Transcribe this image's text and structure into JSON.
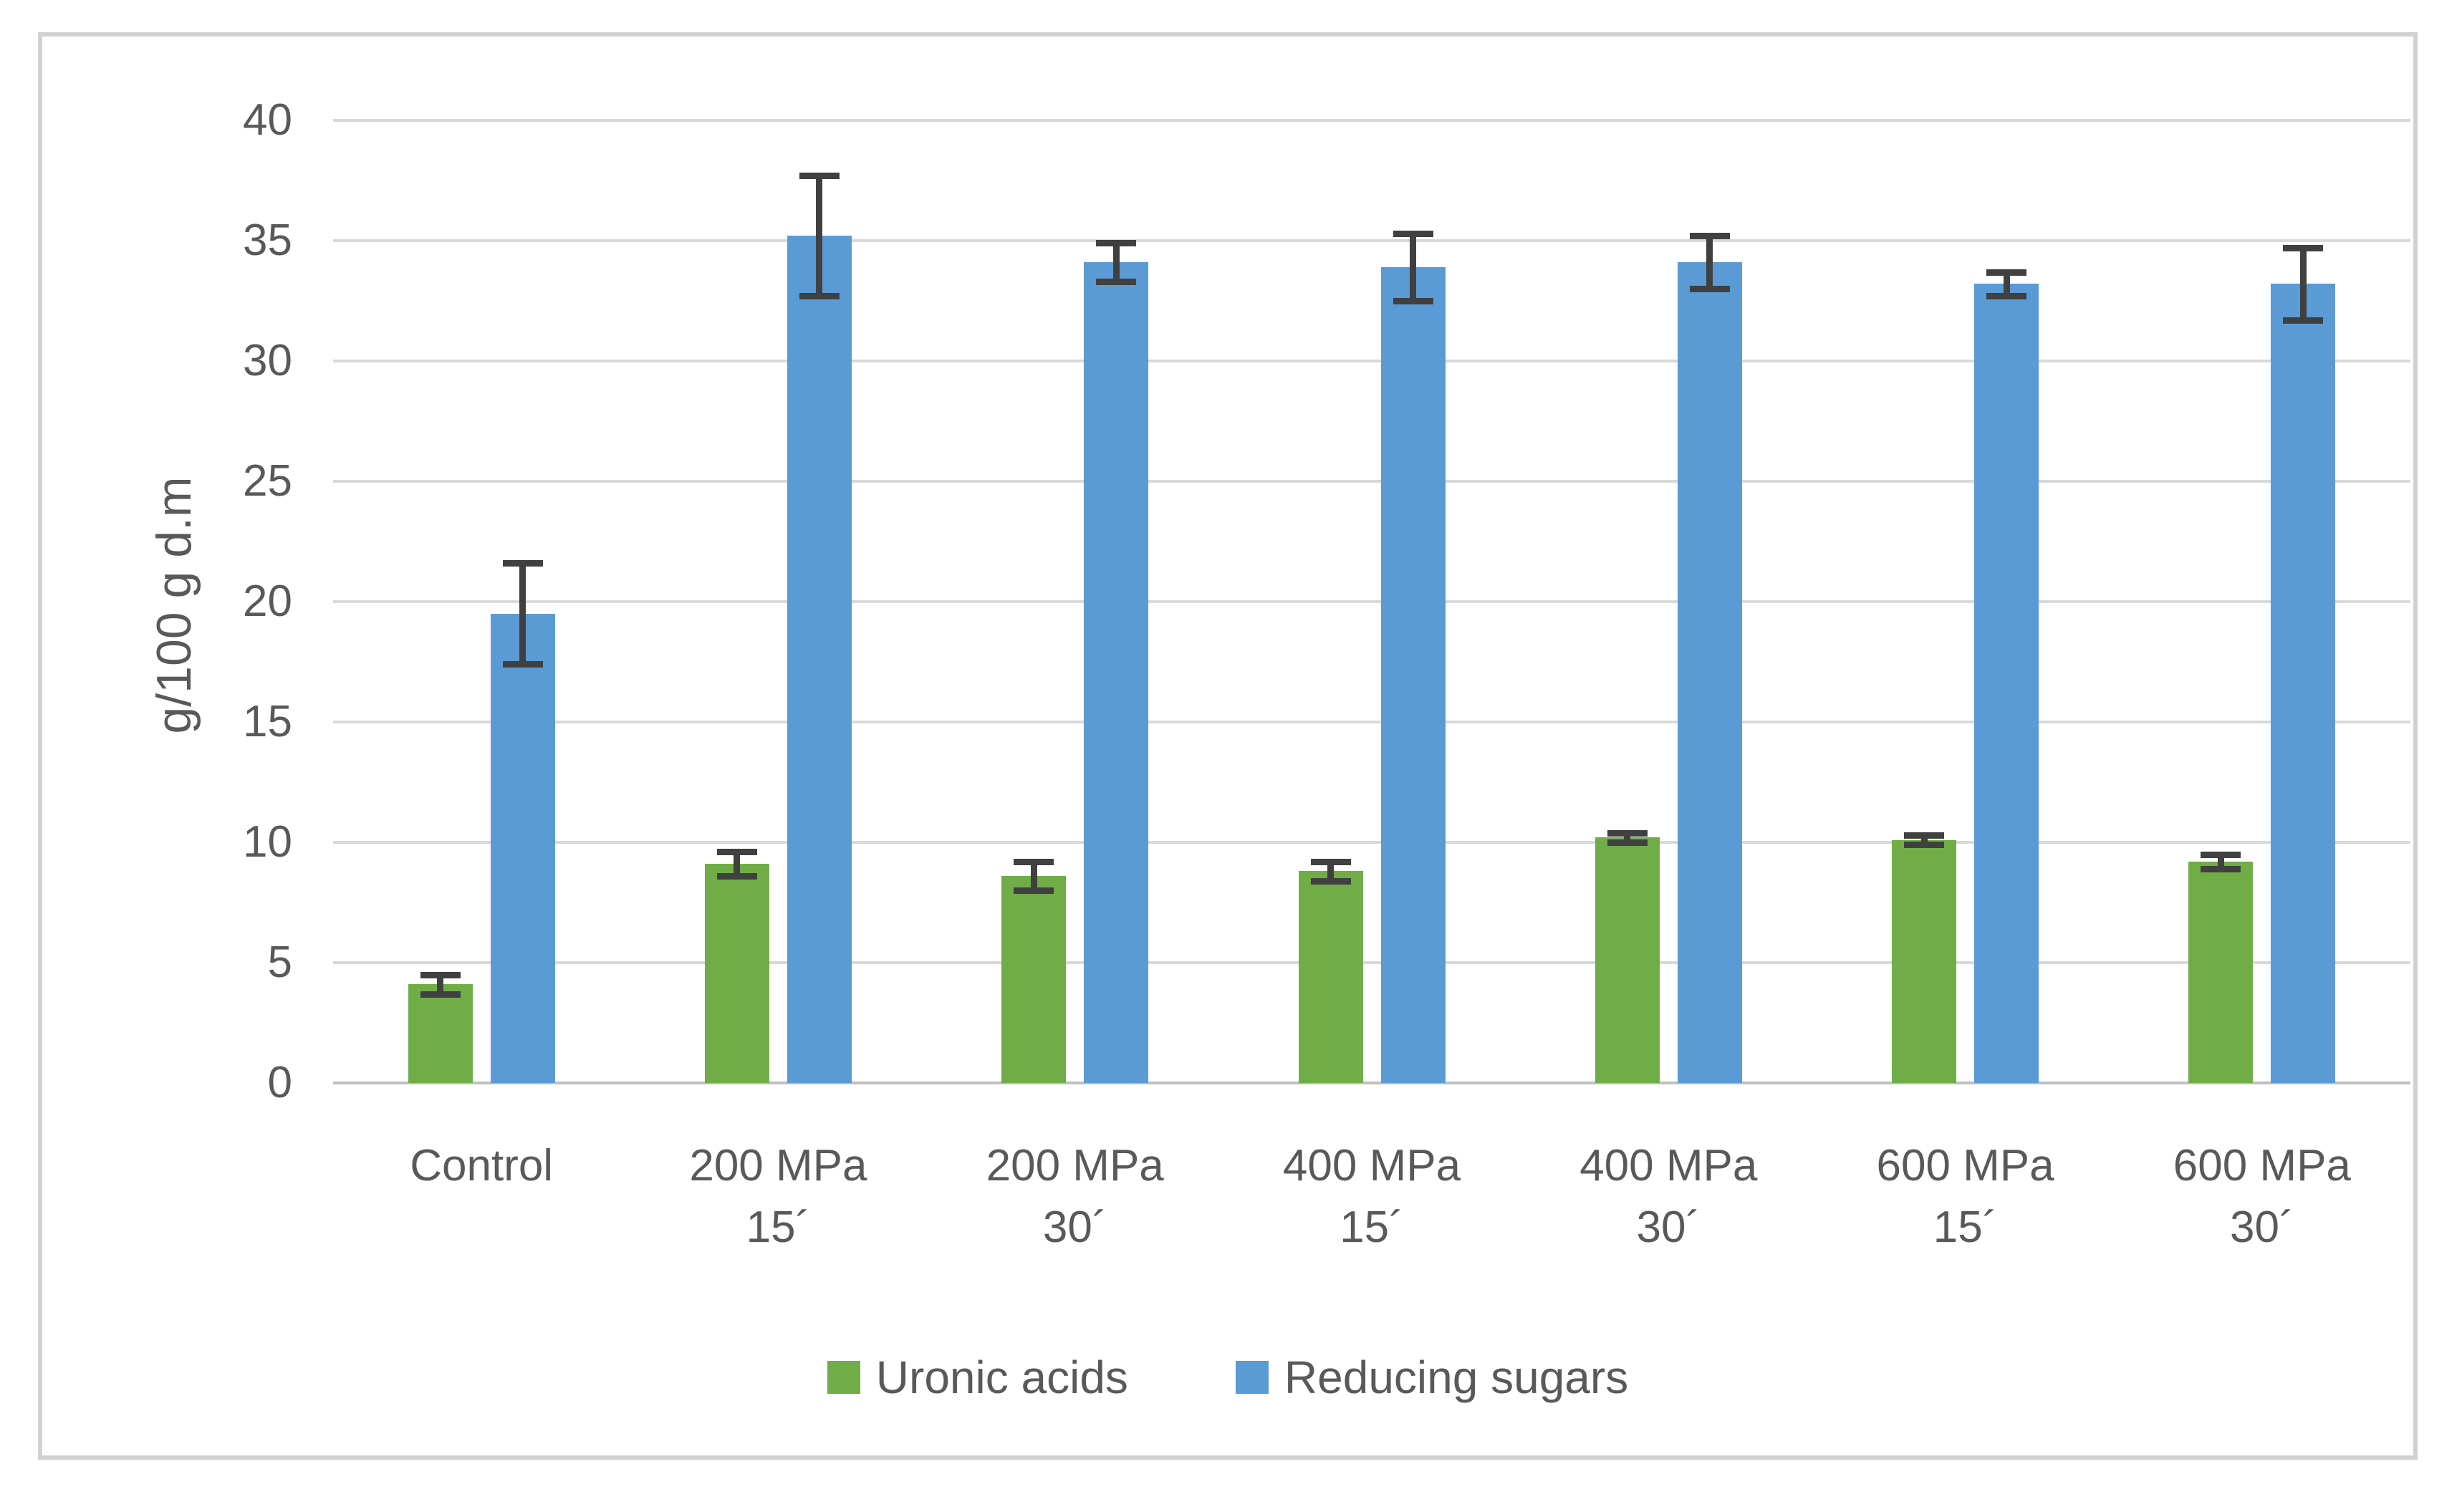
{
  "figure": {
    "ylabel": "g/100 g d.m"
  },
  "chart_data": {
    "type": "bar",
    "title": "",
    "xlabel": "",
    "ylabel": "g/100 g d.m",
    "ylim": [
      0,
      40
    ],
    "ytick_step": 5,
    "yticks": [
      0,
      5,
      10,
      15,
      20,
      25,
      30,
      35,
      40
    ],
    "grid": true,
    "legend_position": "bottom",
    "categories": [
      "Control",
      "200 MPa 15´",
      "200 MPa 30´",
      "400 MPa 15´",
      "400 MPa 30´",
      "600 MPa 15´",
      "600 MPa 30´"
    ],
    "categories_lines": [
      [
        "Control"
      ],
      [
        "200 MPa",
        "15´"
      ],
      [
        "200 MPa",
        "30´"
      ],
      [
        "400 MPa",
        "15´"
      ],
      [
        "400 MPa",
        "30´"
      ],
      [
        "600 MPa",
        "15´"
      ],
      [
        "600 MPa",
        "30´"
      ]
    ],
    "series": [
      {
        "name": "Uronic acids",
        "color": "#70AD47",
        "values": [
          4.1,
          9.1,
          8.6,
          8.8,
          10.2,
          10.1,
          9.2
        ],
        "errors": [
          0.4,
          0.5,
          0.6,
          0.4,
          0.2,
          0.2,
          0.3
        ]
      },
      {
        "name": "Reducing sugars",
        "color": "#5B9BD5",
        "values": [
          19.5,
          35.2,
          34.1,
          33.9,
          34.1,
          33.2,
          33.2
        ],
        "errors": [
          2.1,
          2.5,
          0.8,
          1.4,
          1.1,
          0.5,
          1.5
        ]
      }
    ],
    "error_bar_color": "#404040",
    "gridline_color": "#D9D9D9",
    "axis_text_color": "#595959"
  }
}
